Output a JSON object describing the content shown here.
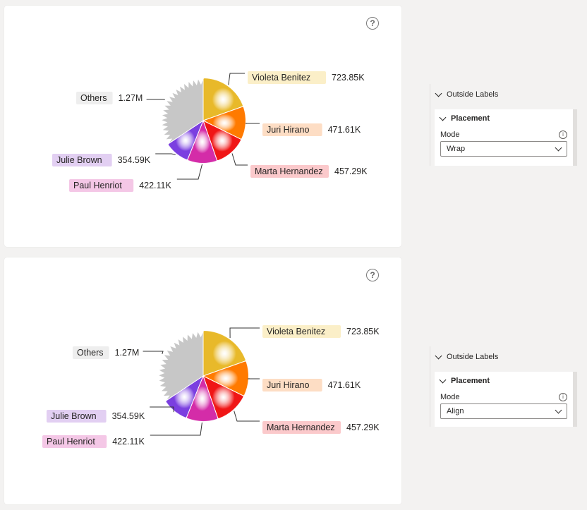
{
  "chart_data": [
    {
      "type": "pie",
      "categories": [
        "Violeta Benitez",
        "Juri Hirano",
        "Marta Hernandez",
        "Paul Henriot",
        "Julie Brown",
        "Others"
      ],
      "values": [
        723850,
        471610,
        457290,
        422110,
        354590,
        1270000
      ],
      "value_labels": [
        "723.85K",
        "471.61K",
        "457.29K",
        "422.11K",
        "354.59K",
        "1.27M"
      ],
      "colors": [
        "#E8B92A",
        "#FF7A00",
        "#F01616",
        "#D42CA8",
        "#7B3FE0",
        "#C7C7C7"
      ],
      "label_mode": "Wrap"
    },
    {
      "type": "pie",
      "categories": [
        "Violeta Benitez",
        "Juri Hirano",
        "Marta Hernandez",
        "Paul Henriot",
        "Julie Brown",
        "Others"
      ],
      "values": [
        723850,
        471610,
        457290,
        422110,
        354590,
        1270000
      ],
      "value_labels": [
        "723.85K",
        "471.61K",
        "457.29K",
        "422.11K",
        "354.59K",
        "1.27M"
      ],
      "colors": [
        "#E8B92A",
        "#FF7A00",
        "#F01616",
        "#D42CA8",
        "#7B3FE0",
        "#C7C7C7"
      ],
      "label_mode": "Align"
    }
  ],
  "panels": [
    {
      "section": "Outside Labels",
      "subsection": "Placement",
      "mode_label": "Mode",
      "mode_value": "Wrap"
    },
    {
      "section": "Outside Labels",
      "subsection": "Placement",
      "mode_label": "Mode",
      "mode_value": "Align"
    }
  ],
  "help_glyph": "?",
  "info_glyph": "i"
}
